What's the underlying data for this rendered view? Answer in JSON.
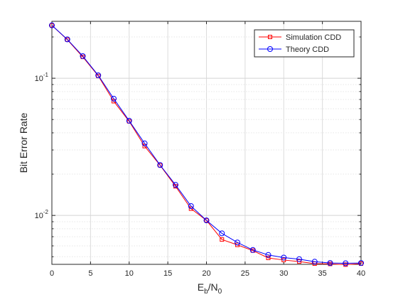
{
  "chart_data": {
    "type": "line",
    "xlabel": "E_b/N_0",
    "ylabel": "Bit Error Rate",
    "xlim": [
      0,
      40
    ],
    "ylim": [
      0.0044,
      0.26
    ],
    "yscale": "log",
    "grid": true,
    "minor_grid": true,
    "legend_position": "top-right",
    "x": [
      0,
      2,
      4,
      6,
      8,
      10,
      12,
      14,
      16,
      18,
      20,
      22,
      24,
      26,
      28,
      30,
      32,
      34,
      36,
      38,
      40
    ],
    "xticks": [
      0,
      5,
      10,
      15,
      20,
      25,
      30,
      35,
      40
    ],
    "yticks": [
      {
        "value": 0.1,
        "mantissa": "10",
        "exponent": "-1"
      },
      {
        "value": 0.01,
        "mantissa": "10",
        "exponent": "-2"
      }
    ],
    "series": [
      {
        "name": "Simulation CDD",
        "color": "#ff0000",
        "marker": "square",
        "values": [
          0.243,
          0.191,
          0.143,
          0.104,
          0.068,
          0.0485,
          0.032,
          0.0232,
          0.0163,
          0.0112,
          0.0092,
          0.00667,
          0.0061,
          0.00554,
          0.0049,
          0.00473,
          0.00461,
          0.00445,
          0.00443,
          0.00438,
          0.00445
        ]
      },
      {
        "name": "Theory CDD",
        "color": "#0000ff",
        "marker": "circle",
        "values": [
          0.243,
          0.192,
          0.145,
          0.105,
          0.071,
          0.049,
          0.0335,
          0.0233,
          0.0167,
          0.0117,
          0.0092,
          0.0074,
          0.00635,
          0.0056,
          0.00515,
          0.00493,
          0.0048,
          0.0046,
          0.0045,
          0.00448,
          0.0045
        ]
      }
    ]
  }
}
